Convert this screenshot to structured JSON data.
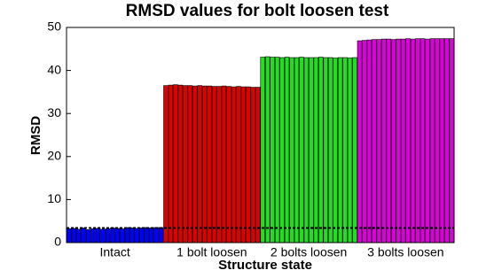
{
  "chart_data": {
    "type": "grouped-index-bar",
    "title": "RMSD values for bolt loosen test",
    "x_label": "Structure state",
    "y_label": "RMSD",
    "groups": [
      {
        "label": "Intact",
        "color": "#0000ff",
        "values": [
          3.2,
          3.3,
          3.1,
          3.4,
          3.0,
          3.2,
          3.3,
          3.1,
          3.2,
          3.4,
          3.3,
          3.2,
          3.5,
          3.4,
          3.3,
          3.4,
          3.5,
          3.4,
          3.5,
          3.5
        ]
      },
      {
        "label": "1 bolt loosen",
        "color": "#e00000",
        "values": [
          36.5,
          36.6,
          36.7,
          36.6,
          36.5,
          36.5,
          36.4,
          36.5,
          36.4,
          36.4,
          36.3,
          36.3,
          36.4,
          36.3,
          36.2,
          36.3,
          36.2,
          36.2,
          36.1,
          36.1
        ]
      },
      {
        "label": "2 bolts loosen",
        "color": "#22dd22",
        "values": [
          43.1,
          43.2,
          43.1,
          43.1,
          43.0,
          43.1,
          43.0,
          43.0,
          43.1,
          43.0,
          43.0,
          43.0,
          43.1,
          43.0,
          43.0,
          42.9,
          43.0,
          43.0,
          42.9,
          43.0
        ]
      },
      {
        "label": "3 bolts loosen",
        "color": "#dd00dd",
        "values": [
          46.9,
          47.0,
          47.1,
          47.2,
          47.2,
          47.3,
          47.3,
          47.2,
          47.3,
          47.3,
          47.4,
          47.3,
          47.4,
          47.4,
          47.3,
          47.4,
          47.4,
          47.4,
          47.4,
          47.4
        ]
      }
    ],
    "threshold": 3.4,
    "ylim": [
      0,
      50
    ],
    "yticks": [
      0,
      10,
      20,
      30,
      40,
      50
    ],
    "grid": false
  }
}
